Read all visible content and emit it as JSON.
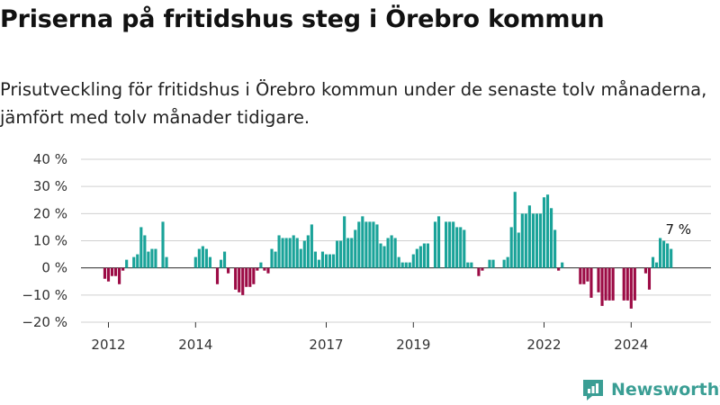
{
  "header": {
    "title": "Priserna på fritidshus steg i Örebro kommun",
    "subtitle": "Prisutveckling för fritidshus i Örebro kommun under de senaste tolv månaderna, jämfört med tolv månader tidigare."
  },
  "brand": {
    "name": "Newsworthy",
    "icon": "newsworthy-logo-icon",
    "color": "#3a9e94"
  },
  "colors": {
    "positive": "#1aa399",
    "negative": "#9c0b45",
    "grid": "#d0d0d0",
    "zero": "#333333"
  },
  "chart_data": {
    "type": "bar",
    "title": "",
    "xlabel": "",
    "ylabel": "",
    "ylim": [
      -20,
      40
    ],
    "yticks": [
      40,
      30,
      20,
      10,
      0,
      -10,
      -20
    ],
    "ytick_labels": [
      "40 %",
      "30 %",
      "20 %",
      "10 %",
      "0 %",
      "−10 %",
      "−20 %"
    ],
    "xtick_labels": [
      {
        "label": "2012",
        "date": "2012-01"
      },
      {
        "label": "2014",
        "date": "2014-01"
      },
      {
        "label": "2017",
        "date": "2017-01"
      },
      {
        "label": "2019",
        "date": "2019-01"
      },
      {
        "label": "2022",
        "date": "2022-01"
      },
      {
        "label": "2024",
        "date": "2024-01"
      }
    ],
    "grid": true,
    "annotation": {
      "text": "7 %",
      "date": "2025-02"
    },
    "series": [
      {
        "start": "2011-12",
        "frequency": "monthly",
        "values": [
          -4,
          -5,
          -3,
          -3,
          -6,
          -1,
          3,
          null,
          4,
          5,
          15,
          12,
          6,
          7,
          7,
          null,
          17,
          4,
          null,
          null,
          null,
          null,
          null,
          null,
          null,
          4,
          7,
          8,
          7,
          4,
          null,
          -6,
          3,
          6,
          -2,
          null,
          -8,
          -9,
          -10,
          -7,
          -7,
          -6,
          -1,
          2,
          -1,
          -2,
          7,
          6,
          12,
          11,
          11,
          11,
          12,
          11,
          7,
          10,
          12,
          16,
          6,
          3,
          6,
          5,
          5,
          5,
          10,
          10,
          19,
          11,
          11,
          14,
          17,
          19,
          17,
          17,
          17,
          16,
          9,
          8,
          11,
          12,
          11,
          4,
          2,
          2,
          2,
          5,
          7,
          8,
          9,
          9,
          null,
          17,
          19,
          null,
          17,
          17,
          17,
          15,
          15,
          14,
          2,
          2,
          null,
          -3,
          -1,
          null,
          3,
          3,
          null,
          null,
          3,
          4,
          15,
          28,
          13,
          20,
          20,
          23,
          20,
          20,
          20,
          26,
          27,
          22,
          14,
          -1,
          2,
          null,
          null,
          null,
          null,
          -6,
          -6,
          -5,
          -11,
          null,
          -9,
          -14,
          -12,
          -12,
          -12,
          null,
          null,
          -12,
          -12,
          -15,
          -12,
          null,
          null,
          -2,
          -8,
          4,
          2,
          11,
          10,
          9,
          7
        ]
      }
    ]
  }
}
